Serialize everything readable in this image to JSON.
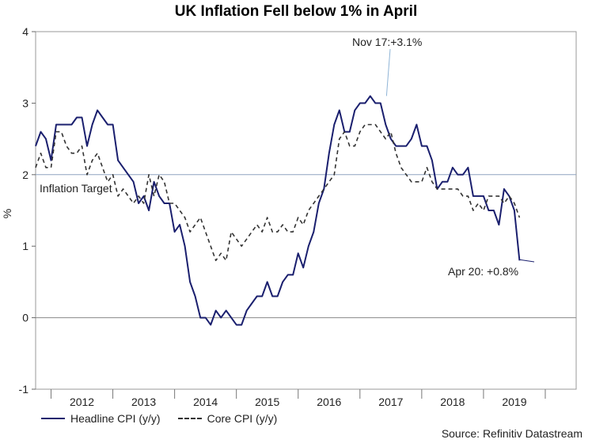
{
  "chart_data": {
    "type": "line",
    "title": "UK Inflation Fell below 1% in April",
    "ylabel": "%",
    "xlabel": "",
    "ylim": [
      -1,
      4
    ],
    "yticks": [
      -1,
      0,
      1,
      2,
      3,
      4
    ],
    "xlim": [
      2011.75,
      2020.5
    ],
    "x_tick_labels": [
      "2012",
      "2013",
      "2014",
      "2015",
      "2016",
      "2017",
      "2018",
      "2019"
    ],
    "reference_line": {
      "value": 2,
      "label": "Inflation Target"
    },
    "annotations": [
      {
        "text": "Nov 17:+3.1%",
        "x": 2017.83,
        "y": 3.1
      },
      {
        "text": "Apr 20: +0.8%",
        "x": 2020.25,
        "y": 0.8
      }
    ],
    "series": [
      {
        "name": "Headline CPI (y/y)",
        "color": "#1a1f6e",
        "style": "solid",
        "values": [
          2.4,
          2.6,
          2.5,
          2.2,
          2.7,
          2.7,
          2.7,
          2.7,
          2.8,
          2.8,
          2.4,
          2.7,
          2.9,
          2.8,
          2.7,
          2.7,
          2.2,
          2.1,
          2.0,
          1.9,
          1.6,
          1.7,
          1.5,
          1.9,
          1.7,
          1.6,
          1.6,
          1.2,
          1.3,
          1.0,
          0.5,
          0.3,
          0.0,
          0.0,
          -0.1,
          0.1,
          0.0,
          0.1,
          0.0,
          -0.1,
          -0.1,
          0.1,
          0.2,
          0.3,
          0.3,
          0.5,
          0.3,
          0.3,
          0.5,
          0.6,
          0.6,
          0.9,
          0.7,
          1.0,
          1.2,
          1.6,
          1.8,
          2.3,
          2.7,
          2.9,
          2.6,
          2.6,
          2.9,
          3.0,
          3.0,
          3.1,
          3.0,
          3.0,
          2.7,
          2.5,
          2.4,
          2.4,
          2.4,
          2.5,
          2.7,
          2.4,
          2.4,
          2.2,
          1.8,
          1.9,
          1.9,
          2.1,
          2.0,
          2.0,
          2.1,
          1.7,
          1.7,
          1.7,
          1.5,
          1.5,
          1.3,
          1.8,
          1.7,
          1.5,
          0.8
        ]
      },
      {
        "name": "Core CPI (y/y)",
        "color": "#333333",
        "style": "dashed",
        "values": [
          2.1,
          2.3,
          2.1,
          2.1,
          2.6,
          2.6,
          2.4,
          2.3,
          2.3,
          2.4,
          2.0,
          2.2,
          2.3,
          2.1,
          1.9,
          2.0,
          1.7,
          1.8,
          1.7,
          1.6,
          1.7,
          1.6,
          2.0,
          1.7,
          2.0,
          1.9,
          1.6,
          1.6,
          1.5,
          1.4,
          1.2,
          1.3,
          1.4,
          1.2,
          1.0,
          0.8,
          0.9,
          0.8,
          1.2,
          1.1,
          1.0,
          1.1,
          1.2,
          1.3,
          1.2,
          1.4,
          1.2,
          1.2,
          1.3,
          1.2,
          1.2,
          1.4,
          1.3,
          1.5,
          1.6,
          1.7,
          1.8,
          1.9,
          2.0,
          2.5,
          2.6,
          2.4,
          2.4,
          2.6,
          2.7,
          2.7,
          2.7,
          2.6,
          2.5,
          2.6,
          2.3,
          2.1,
          2.0,
          1.9,
          1.9,
          1.9,
          2.1,
          1.9,
          1.8,
          1.8,
          1.8,
          1.8,
          1.8,
          1.7,
          1.7,
          1.5,
          1.6,
          1.5,
          1.7,
          1.7,
          1.7,
          1.6,
          1.7,
          1.6,
          1.4
        ]
      }
    ]
  },
  "legend": {
    "headline": "Headline CPI (y/y)",
    "core": "Core CPI (y/y)"
  },
  "source": "Source: Refinitiv Datastream"
}
